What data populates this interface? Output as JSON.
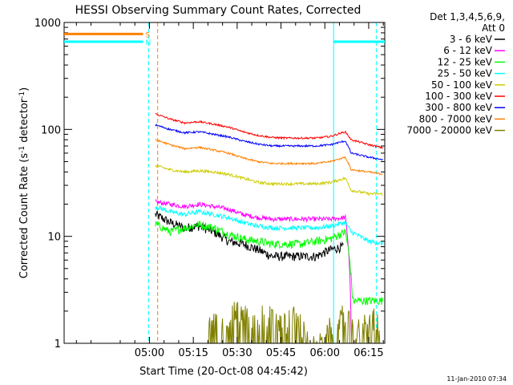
{
  "chart_data": {
    "type": "line",
    "title": "HESSI Observing Summary Count Rates, Corrected",
    "xlabel": "Start Time (20-Oct-08 04:45:42)",
    "ylabel_parts": [
      "Corrected Count Rate (s",
      "-1",
      " detector",
      "-1",
      ")"
    ],
    "yscale": "log",
    "ylim": [
      1,
      1000
    ],
    "xlim_min": [
      -14.2,
      95.5
    ],
    "xticks": [
      {
        "t": 15,
        "label": "05:00"
      },
      {
        "t": 30,
        "label": "05:15"
      },
      {
        "t": 45,
        "label": "05:30"
      },
      {
        "t": 60,
        "label": "05:45"
      },
      {
        "t": 75,
        "label": "06:00"
      },
      {
        "t": 90,
        "label": "06:15"
      }
    ],
    "yticks": [
      {
        "v": 1,
        "label": "1"
      },
      {
        "v": 10,
        "label": "10"
      },
      {
        "v": 100,
        "label": "100"
      },
      {
        "v": 1000,
        "label": "1000"
      }
    ],
    "legend_header": [
      "Det 1,3,4,5,6,9,",
      "Att 0"
    ],
    "legend_placement": "right",
    "series": [
      {
        "name": "3 - 6 keV",
        "color": "#000000",
        "x": [
          17,
          22,
          27,
          32,
          37,
          42,
          47,
          52,
          57,
          62,
          67,
          72,
          77,
          81.5
        ],
        "y": [
          16,
          13.5,
          12,
          12.5,
          11,
          9,
          8.5,
          7.5,
          6.5,
          6.5,
          6.5,
          6.5,
          7.5,
          8
        ],
        "noise": 0.1
      },
      {
        "name": "6 - 12 keV",
        "color": "#ff00ff",
        "x": [
          17,
          22,
          27,
          32,
          37,
          42,
          47,
          52,
          57,
          62,
          67,
          72,
          77,
          82,
          84.2,
          90,
          95
        ],
        "y": [
          21,
          20,
          19,
          20,
          19,
          18,
          16,
          15,
          14.5,
          14.5,
          14.5,
          14.5,
          14.5,
          15,
          0,
          0,
          0
        ],
        "noise": 0.05
      },
      {
        "name": "12 - 25 keV",
        "color": "#00ff00",
        "x": [
          17,
          22,
          27,
          32,
          37,
          42,
          47,
          52,
          57,
          62,
          67,
          72,
          77,
          82,
          84.5,
          90,
          95
        ],
        "y": [
          13,
          11,
          12,
          13,
          12,
          10.5,
          9.5,
          9,
          8.5,
          8.5,
          8.5,
          9,
          9.5,
          11,
          2.5,
          2.5,
          2.5
        ],
        "noise": 0.09
      },
      {
        "name": "25 - 50 keV",
        "color": "#00ffff",
        "x": [
          17,
          22,
          27,
          32,
          37,
          42,
          47,
          52,
          57,
          62,
          67,
          72,
          77,
          82,
          84,
          90,
          95
        ],
        "y": [
          19,
          17,
          16,
          17,
          16,
          15,
          13.5,
          12.5,
          12,
          12,
          12,
          12,
          12.5,
          13.5,
          11,
          9,
          8.5
        ],
        "noise": 0.05
      },
      {
        "name": "50 - 100 keV",
        "color": "#cccc00",
        "x": [
          17,
          22,
          27,
          32,
          37,
          42,
          47,
          52,
          57,
          62,
          67,
          72,
          77,
          82,
          84,
          90,
          95
        ],
        "y": [
          46,
          42,
          40,
          41,
          40,
          38,
          35,
          32,
          31,
          31,
          31,
          31,
          32,
          35,
          27,
          25,
          25
        ],
        "noise": 0.03
      },
      {
        "name": "100 - 300 keV",
        "color": "#ff0000",
        "x": [
          17,
          22,
          27,
          32,
          37,
          42,
          47,
          52,
          57,
          62,
          67,
          72,
          77,
          82,
          84,
          90,
          95
        ],
        "y": [
          140,
          125,
          115,
          118,
          112,
          105,
          95,
          88,
          84,
          83,
          83,
          83,
          86,
          95,
          80,
          72,
          67
        ],
        "noise": 0.02
      },
      {
        "name": "300 - 800 keV",
        "color": "#0000ff",
        "x": [
          17,
          22,
          27,
          32,
          37,
          42,
          47,
          52,
          57,
          62,
          67,
          72,
          77,
          82,
          84,
          90,
          95
        ],
        "y": [
          110,
          100,
          93,
          95,
          90,
          85,
          78,
          73,
          70,
          70,
          70,
          70,
          72,
          78,
          60,
          55,
          52
        ],
        "noise": 0.02
      },
      {
        "name": "800 - 7000 keV",
        "color": "#ff8000",
        "x": [
          17,
          22,
          27,
          32,
          37,
          42,
          47,
          52,
          57,
          62,
          67,
          72,
          77,
          82,
          84,
          90,
          95
        ],
        "y": [
          80,
          72,
          66,
          68,
          64,
          60,
          54,
          50,
          48,
          48,
          48,
          48,
          50,
          55,
          42,
          40,
          38
        ],
        "noise": 0.02
      },
      {
        "name": "7000 - 20000 keV",
        "color": "#808000",
        "x": [
          35,
          40,
          45,
          50,
          55,
          60,
          65,
          70,
          75,
          77,
          82,
          85,
          88,
          91,
          94
        ],
        "y": [
          1.4,
          1.8,
          2,
          1.7,
          1.9,
          1.5,
          1.8,
          1,
          1,
          1.5,
          1.9,
          1.2,
          1.5,
          1.8,
          1.4
        ],
        "noise": 0.25
      }
    ],
    "attenuator_segments": [
      {
        "state": "S",
        "color": "#ff8000",
        "y": 780,
        "x0": -14.2,
        "x1": 12.8
      },
      {
        "state": "N",
        "color": "#00ffff",
        "y": 660,
        "x0": -14.2,
        "x1": 12.8
      },
      {
        "state": "",
        "color": "#00ffff",
        "y": 660,
        "x0": 78,
        "x1": 95.5
      }
    ],
    "interval_markers": [
      {
        "t": -14.2,
        "color": "#00ffff",
        "style": "solid"
      },
      {
        "t": 14.7,
        "color": "#00ffff",
        "style": "dashed"
      },
      {
        "t": 17.8,
        "color": "#ff8000",
        "style": "dashed"
      },
      {
        "t": 78,
        "color": "#00ffff",
        "style": "solid"
      },
      {
        "t": 92.6,
        "color": "#00ffff",
        "style": "dashed"
      }
    ]
  },
  "footer": {
    "date": "11-Jan-2010 07:34"
  }
}
